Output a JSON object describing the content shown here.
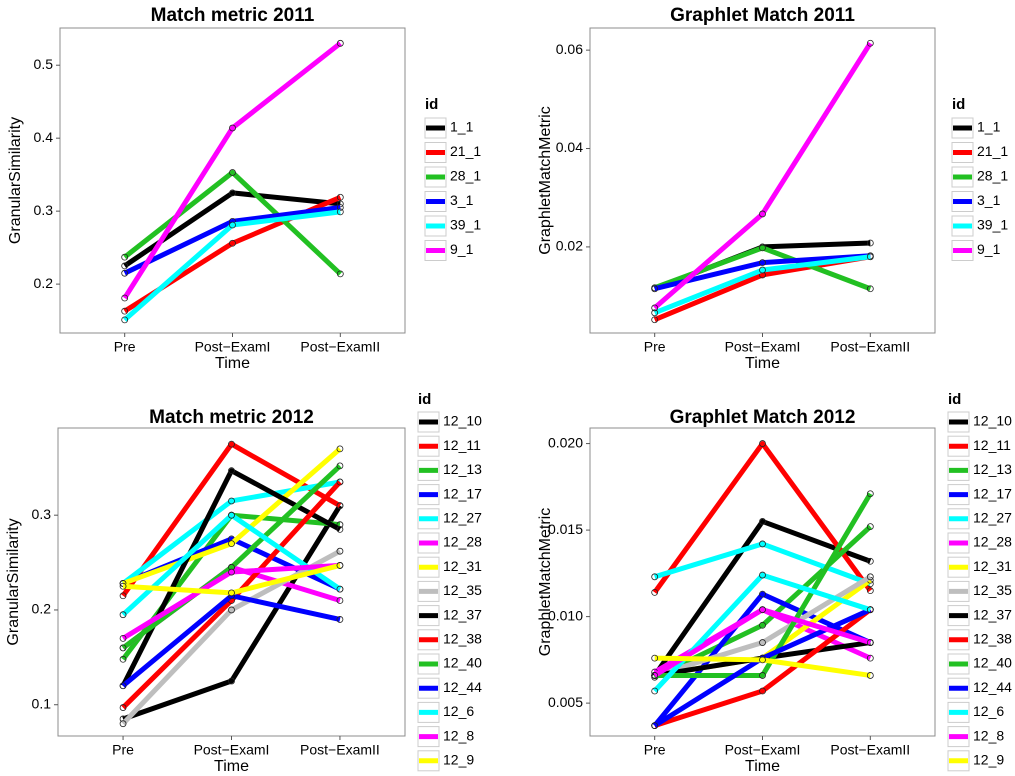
{
  "chart_data": [
    {
      "type": "line",
      "title": "Match metric 2011",
      "x_label": "Time",
      "y_label": "GranularSimilarity",
      "legend_title": "id",
      "categories": [
        "Pre",
        "Post−ExamI",
        "Post−ExamII"
      ],
      "ylim": [
        0.133,
        0.551
      ],
      "yticks": [
        0.2,
        0.3,
        0.4,
        0.5
      ],
      "series": [
        {
          "name": "1_1",
          "color": "#000000",
          "values": [
            0.225,
            0.325,
            0.31
          ]
        },
        {
          "name": "21_1",
          "color": "#ff0000",
          "values": [
            0.163,
            0.256,
            0.319
          ]
        },
        {
          "name": "28_1",
          "color": "#22c022",
          "values": [
            0.237,
            0.353,
            0.214
          ]
        },
        {
          "name": "3_1",
          "color": "#0000ff",
          "values": [
            0.215,
            0.286,
            0.305
          ]
        },
        {
          "name": "39_1",
          "color": "#00ffff",
          "values": [
            0.151,
            0.281,
            0.299
          ]
        },
        {
          "name": "9_1",
          "color": "#ff00ff",
          "values": [
            0.181,
            0.414,
            0.53
          ]
        }
      ]
    },
    {
      "type": "line",
      "title": "Graphlet Match 2011",
      "x_label": "Time",
      "y_label": "GraphletMatchMetric",
      "legend_title": "id",
      "categories": [
        "Pre",
        "Post−ExamI",
        "Post−ExamII"
      ],
      "ylim": [
        0.0025,
        0.0645
      ],
      "yticks": [
        0.02,
        0.04,
        0.06
      ],
      "series": [
        {
          "name": "1_1",
          "color": "#000000",
          "values": [
            0.0115,
            0.02,
            0.0208
          ]
        },
        {
          "name": "21_1",
          "color": "#ff0000",
          "values": [
            0.0052,
            0.0143,
            0.018
          ]
        },
        {
          "name": "28_1",
          "color": "#22c022",
          "values": [
            0.0117,
            0.0198,
            0.0115
          ]
        },
        {
          "name": "3_1",
          "color": "#0000ff",
          "values": [
            0.0115,
            0.0168,
            0.0182
          ]
        },
        {
          "name": "39_1",
          "color": "#00ffff",
          "values": [
            0.0066,
            0.0153,
            0.018
          ]
        },
        {
          "name": "9_1",
          "color": "#ff00ff",
          "values": [
            0.0076,
            0.0267,
            0.0614
          ]
        }
      ]
    },
    {
      "type": "line",
      "title": "Match metric 2012",
      "x_label": "Time",
      "y_label": "GranularSimilarity",
      "legend_title": "id",
      "categories": [
        "Pre",
        "Post−ExamI",
        "Post−ExamII"
      ],
      "ylim": [
        0.067,
        0.392
      ],
      "yticks": [
        0.1,
        0.2,
        0.3
      ],
      "series": [
        {
          "name": "12_10",
          "color": "#000000",
          "values": [
            0.085,
            0.125,
            0.31
          ]
        },
        {
          "name": "12_11",
          "color": "#ff0000",
          "values": [
            0.215,
            0.375,
            0.31
          ]
        },
        {
          "name": "12_13",
          "color": "#22c022",
          "values": [
            0.148,
            0.3,
            0.29
          ]
        },
        {
          "name": "12_17",
          "color": "#0000ff",
          "values": [
            0.228,
            0.275,
            0.222
          ]
        },
        {
          "name": "12_27",
          "color": "#00ffff",
          "values": [
            0.228,
            0.315,
            0.335
          ]
        },
        {
          "name": "12_28",
          "color": "#ff00ff",
          "values": [
            0.16,
            0.245,
            0.21
          ]
        },
        {
          "name": "12_31",
          "color": "#ffff00",
          "values": [
            0.228,
            0.27,
            0.37
          ]
        },
        {
          "name": "12_35",
          "color": "#bebebe",
          "values": [
            0.08,
            0.2,
            0.262
          ]
        },
        {
          "name": "12_37",
          "color": "#000000",
          "values": [
            0.12,
            0.347,
            0.285
          ]
        },
        {
          "name": "12_38",
          "color": "#ff0000",
          "values": [
            0.097,
            0.21,
            0.335
          ]
        },
        {
          "name": "12_40",
          "color": "#22c022",
          "values": [
            0.16,
            0.245,
            0.352
          ]
        },
        {
          "name": "12_44",
          "color": "#0000ff",
          "values": [
            0.12,
            0.215,
            0.19
          ]
        },
        {
          "name": "12_6",
          "color": "#00ffff",
          "values": [
            0.195,
            0.3,
            0.222
          ]
        },
        {
          "name": "12_8",
          "color": "#ff00ff",
          "values": [
            0.17,
            0.24,
            0.247
          ]
        },
        {
          "name": "12_9",
          "color": "#ffff00",
          "values": [
            0.225,
            0.218,
            0.247
          ]
        }
      ]
    },
    {
      "type": "line",
      "title": "Graphlet Match 2012",
      "x_label": "Time",
      "y_label": "GraphletMatchMetric",
      "legend_title": "id",
      "categories": [
        "Pre",
        "Post−ExamI",
        "Post−ExamII"
      ],
      "ylim": [
        0.0031,
        0.0209
      ],
      "yticks": [
        0.005,
        {
          "value": 0.01,
          "label": "0.010"
        },
        0.015,
        {
          "value": 0.02,
          "label": "0.020"
        }
      ],
      "series": [
        {
          "name": "12_10",
          "color": "#000000",
          "values": [
            0.0066,
            0.0155,
            0.0132
          ]
        },
        {
          "name": "12_11",
          "color": "#ff0000",
          "values": [
            0.0114,
            0.02,
            0.0115
          ]
        },
        {
          "name": "12_13",
          "color": "#22c022",
          "values": [
            0.0065,
            0.0095,
            0.0152
          ]
        },
        {
          "name": "12_17",
          "color": "#0000ff",
          "values": [
            0.0037,
            0.0113,
            0.0085
          ]
        },
        {
          "name": "12_27",
          "color": "#00ffff",
          "values": [
            0.0123,
            0.0142,
            0.0119
          ]
        },
        {
          "name": "12_28",
          "color": "#ff00ff",
          "values": [
            0.0068,
            0.0104,
            0.0076
          ]
        },
        {
          "name": "12_31",
          "color": "#ffff00",
          "values": [
            0.0066,
            0.0076,
            0.0121
          ]
        },
        {
          "name": "12_35",
          "color": "#bebebe",
          "values": [
            0.0066,
            0.0085,
            0.0123
          ]
        },
        {
          "name": "12_37",
          "color": "#000000",
          "values": [
            0.0066,
            0.0076,
            0.0085
          ]
        },
        {
          "name": "12_38",
          "color": "#ff0000",
          "values": [
            0.0037,
            0.0057,
            0.0104
          ]
        },
        {
          "name": "12_40",
          "color": "#22c022",
          "values": [
            0.0066,
            0.0066,
            0.0171
          ]
        },
        {
          "name": "12_44",
          "color": "#0000ff",
          "values": [
            0.0037,
            0.0076,
            0.0104
          ]
        },
        {
          "name": "12_6",
          "color": "#00ffff",
          "values": [
            0.0057,
            0.0124,
            0.0104
          ]
        },
        {
          "name": "12_8",
          "color": "#ff00ff",
          "values": [
            0.0066,
            0.0104,
            0.0085
          ]
        },
        {
          "name": "12_9",
          "color": "#ffff00",
          "values": [
            0.0076,
            0.0075,
            0.0066
          ]
        }
      ]
    }
  ]
}
